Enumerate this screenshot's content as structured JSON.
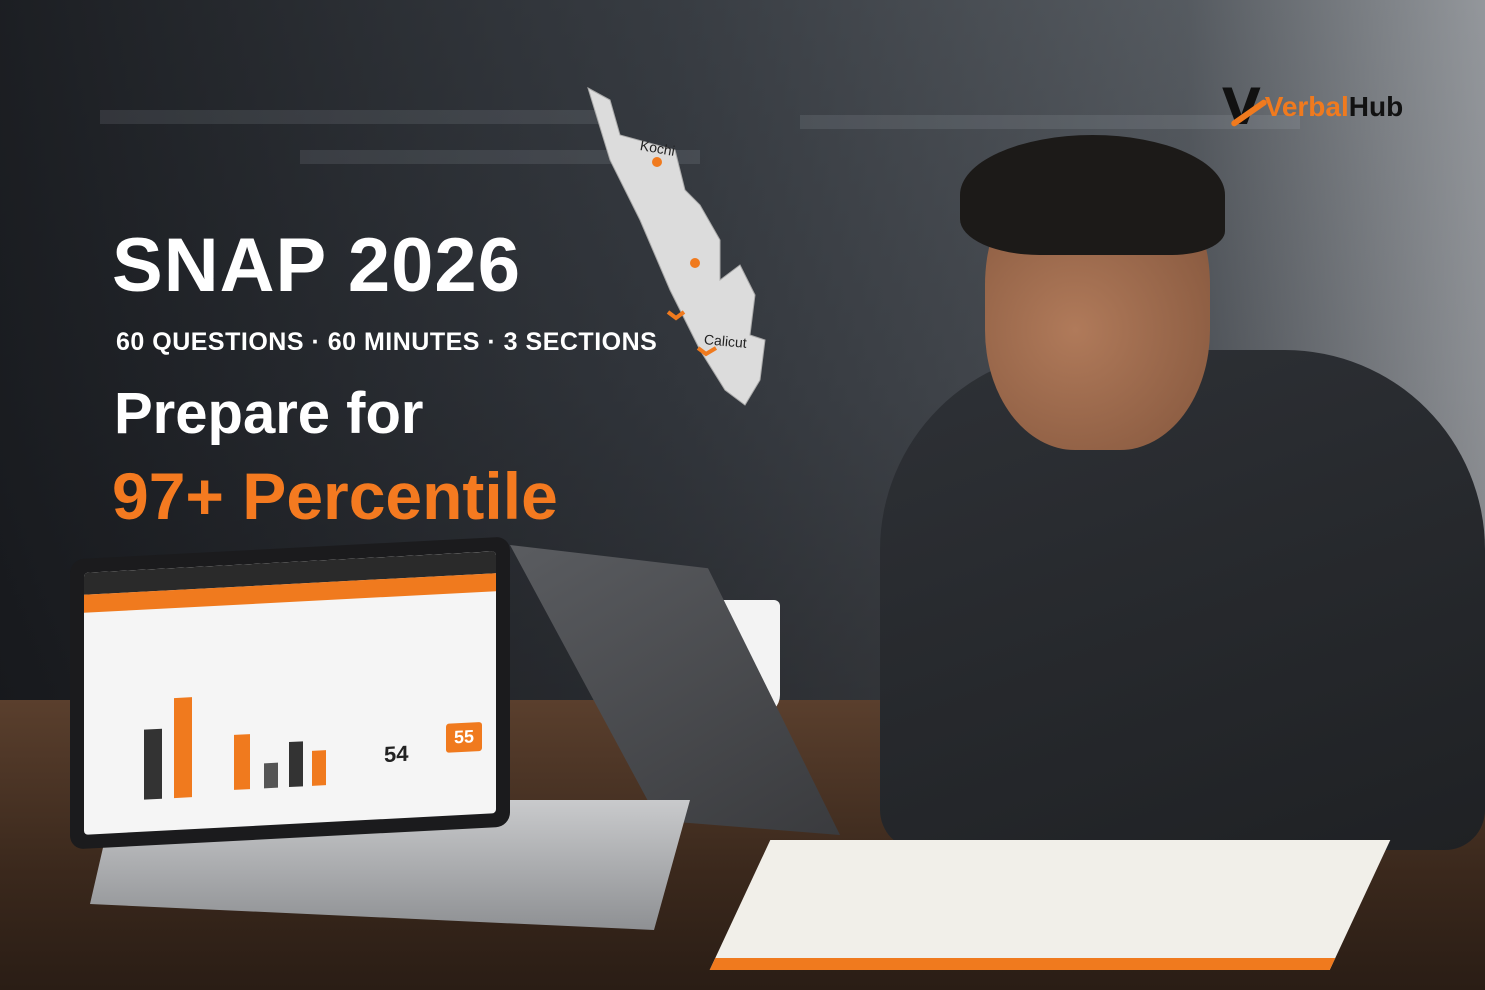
{
  "brand": {
    "logo_mark": "V",
    "name_part1": "Verbal",
    "name_part2": "Hub",
    "accent": "#f07a1e"
  },
  "headline": {
    "title": "SNAP 2026",
    "subtitle": "60 QUESTIONS · 60 MINUTES · 3 SECTIONS",
    "line1": "Prepare for",
    "line2": "97+ Percentile"
  },
  "map": {
    "labels": [
      "Kochi",
      "Calicut"
    ]
  },
  "laptop_screen": {
    "score_left": "54",
    "score_right": "55"
  }
}
